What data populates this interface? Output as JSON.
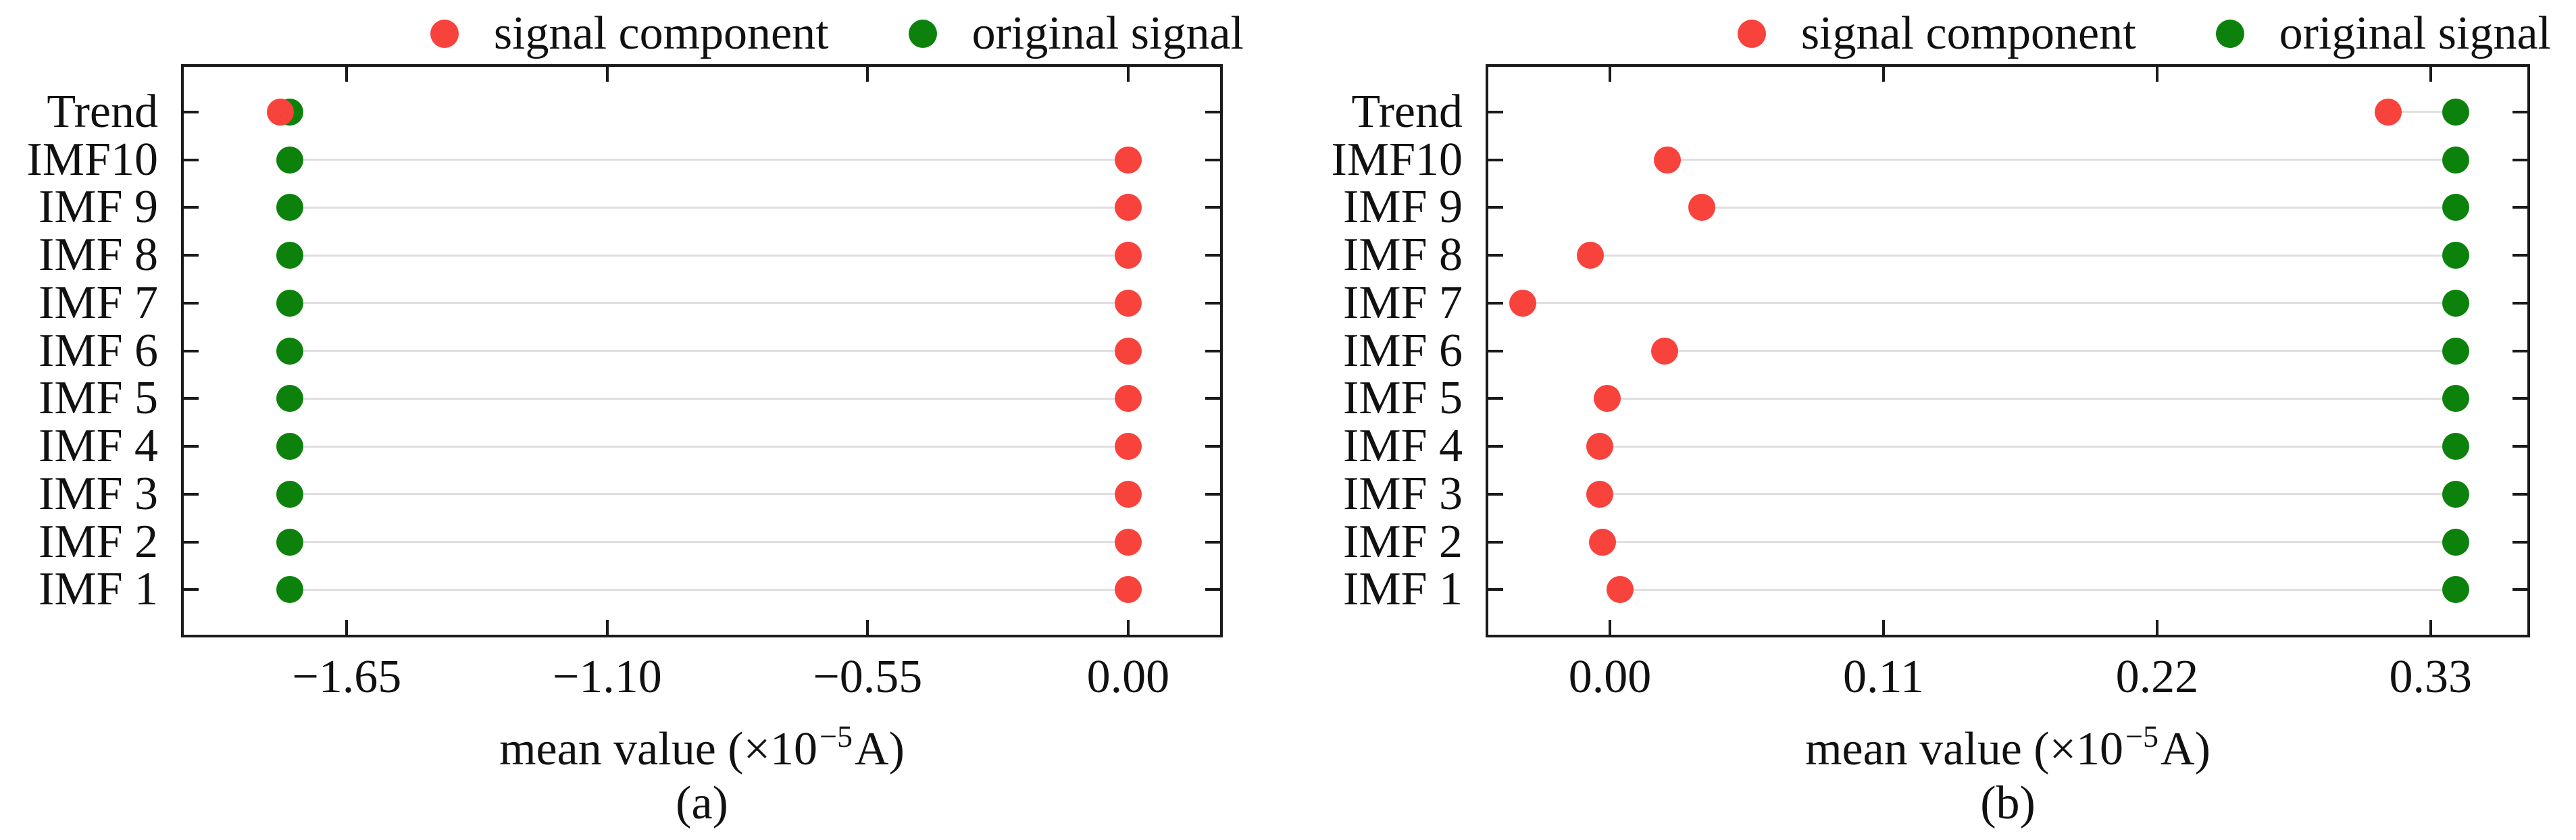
{
  "figure": {
    "background": "#ffffff"
  },
  "colors": {
    "red": "#f8423c",
    "green": "#0c820c",
    "stem": "#dfdfdf",
    "axis": "#1a1a1a"
  },
  "legend": {
    "items": [
      {
        "label": "signal component",
        "color": "#f8423c"
      },
      {
        "label": "original signal",
        "color": "#0c820c"
      }
    ]
  },
  "axis": {
    "xlabel_prefix": "mean value (×10",
    "xlabel_exp": "−5",
    "xlabel_suffix": "A)"
  },
  "chart_data": [
    {
      "type": "scatter",
      "panel": "a",
      "caption": "(a)",
      "title": "",
      "xlabel": "mean value (×10⁻⁵A)",
      "ylabel": "",
      "categories": [
        "Trend",
        "IMF10",
        "IMF 9",
        "IMF 8",
        "IMF 7",
        "IMF 6",
        "IMF 5",
        "IMF 4",
        "IMF 3",
        "IMF 2",
        "IMF 1"
      ],
      "series": [
        {
          "name": "signal component",
          "color": "#f8423c",
          "values": [
            -1.79,
            0.0,
            0.0,
            0.0,
            0.0,
            0.0,
            0.0,
            0.0,
            0.0,
            0.0,
            0.0
          ]
        },
        {
          "name": "original signal",
          "color": "#0c820c",
          "values": [
            -1.77,
            -1.77,
            -1.77,
            -1.77,
            -1.77,
            -1.77,
            -1.77,
            -1.77,
            -1.77,
            -1.77,
            -1.77
          ]
        }
      ],
      "xlim": [
        -2.0,
        0.2
      ],
      "xticks": [
        -1.65,
        -1.1,
        -0.55,
        0.0
      ],
      "xtick_labels": [
        "−1.65",
        "−1.10",
        "−0.55",
        "0.00"
      ],
      "grid": false,
      "legend_position": "top-right"
    },
    {
      "type": "scatter",
      "panel": "b",
      "caption": "(b)",
      "title": "",
      "xlabel": "mean value (×10⁻⁵A)",
      "ylabel": "",
      "categories": [
        "Trend",
        "IMF10",
        "IMF 9",
        "IMF 8",
        "IMF 7",
        "IMF 6",
        "IMF 5",
        "IMF 4",
        "IMF 3",
        "IMF 2",
        "IMF 1"
      ],
      "series": [
        {
          "name": "signal component",
          "color": "#f8423c",
          "values": [
            0.313,
            0.023,
            0.037,
            -0.008,
            -0.035,
            0.022,
            -0.001,
            -0.004,
            -0.004,
            -0.003,
            0.004
          ]
        },
        {
          "name": "original signal",
          "color": "#0c820c",
          "values": [
            0.34,
            0.34,
            0.34,
            0.34,
            0.34,
            0.34,
            0.34,
            0.34,
            0.34,
            0.34,
            0.34
          ]
        }
      ],
      "xlim": [
        -0.05,
        0.37
      ],
      "xticks": [
        0.0,
        0.11,
        0.22,
        0.33
      ],
      "xtick_labels": [
        "0.00",
        "0.11",
        "0.22",
        "0.33"
      ],
      "grid": false,
      "legend_position": "top-right"
    }
  ]
}
